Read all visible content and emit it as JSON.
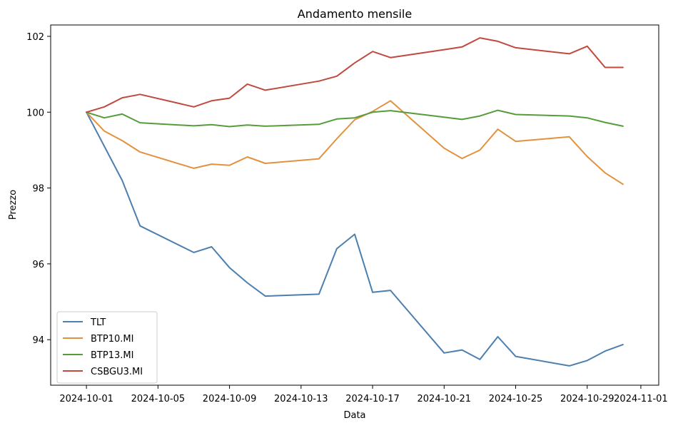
{
  "chart_data": {
    "type": "line",
    "title": "Andamento mensile",
    "xlabel": "Data",
    "ylabel": "Prezzo",
    "xlim": [
      "2024-09-29",
      "2024-11-02"
    ],
    "ylim": [
      92.8,
      102.3
    ],
    "x_ticks": [
      "2024-10-01",
      "2024-10-05",
      "2024-10-09",
      "2024-10-13",
      "2024-10-17",
      "2024-10-21",
      "2024-10-25",
      "2024-10-29",
      "2024-11-01"
    ],
    "y_ticks": [
      94,
      96,
      98,
      100,
      102
    ],
    "legend_position": "lower-left",
    "grid": false,
    "x": [
      "2024-10-01",
      "2024-10-02",
      "2024-10-03",
      "2024-10-04",
      "2024-10-07",
      "2024-10-08",
      "2024-10-09",
      "2024-10-10",
      "2024-10-11",
      "2024-10-14",
      "2024-10-15",
      "2024-10-16",
      "2024-10-17",
      "2024-10-18",
      "2024-10-21",
      "2024-10-22",
      "2024-10-23",
      "2024-10-24",
      "2024-10-25",
      "2024-10-28",
      "2024-10-29",
      "2024-10-30",
      "2024-10-31"
    ],
    "series": [
      {
        "name": "TLT",
        "color": "#4c7fb0",
        "values": [
          100.0,
          99.1,
          98.2,
          97.0,
          96.3,
          96.45,
          95.9,
          95.5,
          95.15,
          95.2,
          96.4,
          96.78,
          95.25,
          95.3,
          93.65,
          93.73,
          93.48,
          94.08,
          93.56,
          93.31,
          93.45,
          93.7,
          93.87
        ]
      },
      {
        "name": "BTP10.MI",
        "color": "#e3913e",
        "values": [
          100.0,
          99.5,
          99.25,
          98.95,
          98.52,
          98.63,
          98.6,
          98.82,
          98.65,
          98.77,
          99.3,
          99.8,
          100.02,
          100.3,
          99.05,
          98.78,
          99.0,
          99.55,
          99.23,
          99.35,
          98.83,
          98.4,
          98.1
        ]
      },
      {
        "name": "BTP13.MI",
        "color": "#559c3c",
        "values": [
          100.0,
          99.85,
          99.95,
          99.72,
          99.64,
          99.67,
          99.62,
          99.66,
          99.63,
          99.68,
          99.82,
          99.85,
          100.0,
          100.04,
          99.87,
          99.81,
          99.9,
          100.05,
          99.94,
          99.9,
          99.85,
          99.73,
          99.63
        ]
      },
      {
        "name": "CSBGU3.MI",
        "color": "#c04a3e",
        "values": [
          100.0,
          100.14,
          100.38,
          100.47,
          100.14,
          100.3,
          100.37,
          100.74,
          100.58,
          100.82,
          100.95,
          101.3,
          101.6,
          101.44,
          101.65,
          101.72,
          101.96,
          101.87,
          101.7,
          101.54,
          101.74,
          101.18,
          101.18
        ]
      }
    ]
  }
}
